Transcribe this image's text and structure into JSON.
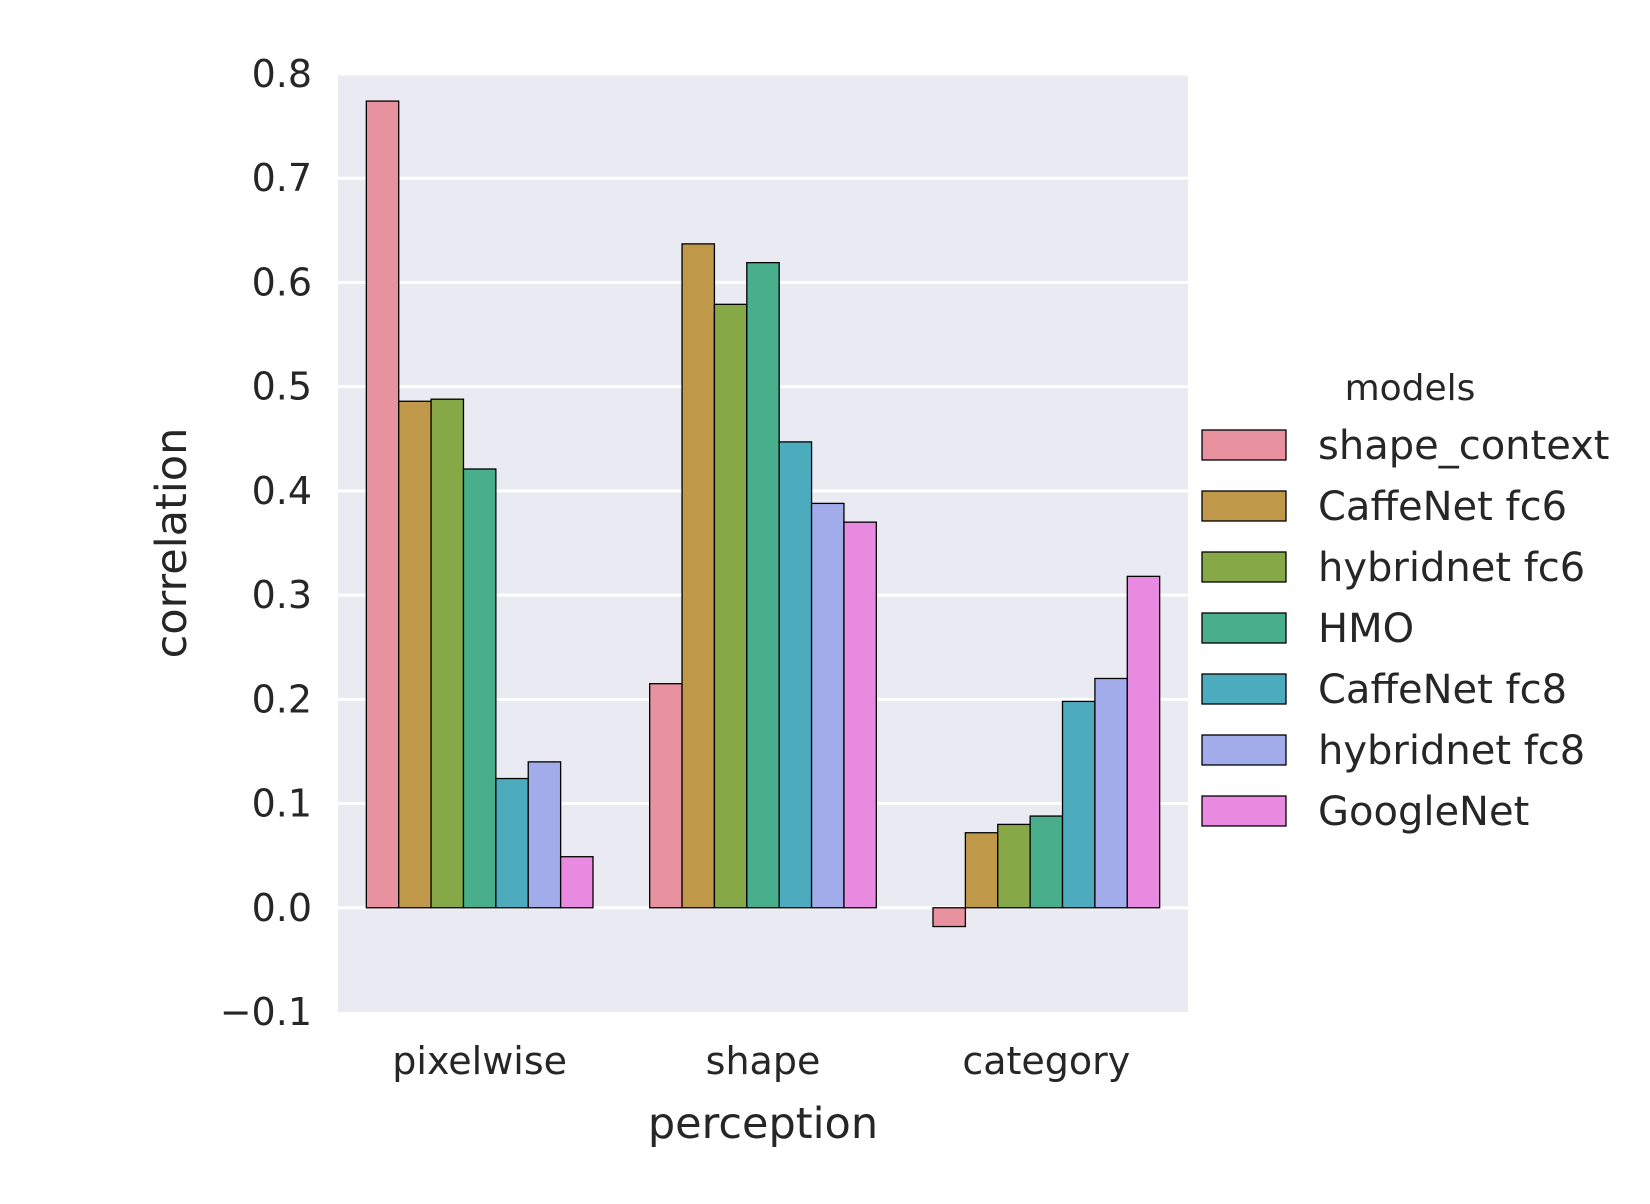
{
  "chart_data": {
    "type": "bar",
    "xlabel": "perception",
    "ylabel": "correlation",
    "categories": [
      "pixelwise",
      "shape",
      "category"
    ],
    "ylim": [
      -0.1,
      0.8
    ],
    "yticks": [
      -0.1,
      0.0,
      0.1,
      0.2,
      0.3,
      0.4,
      0.5,
      0.6,
      0.7,
      0.8
    ],
    "ytick_labels": [
      "−0.1",
      "0.0",
      "0.1",
      "0.2",
      "0.3",
      "0.4",
      "0.5",
      "0.6",
      "0.7",
      "0.8"
    ],
    "grid": true,
    "background": "#eaeaf2",
    "legend": {
      "title": "models",
      "placement": "right"
    },
    "series": [
      {
        "name": "shape_context",
        "color": "#e8929f",
        "values": [
          0.774,
          0.215,
          -0.018
        ]
      },
      {
        "name": "CaffeNet fc6",
        "color": "#c0984a",
        "values": [
          0.486,
          0.637,
          0.072
        ]
      },
      {
        "name": "hybridnet fc6",
        "color": "#86a846",
        "values": [
          0.488,
          0.579,
          0.08
        ]
      },
      {
        "name": "HMO",
        "color": "#49ae8b",
        "values": [
          0.421,
          0.619,
          0.088
        ]
      },
      {
        "name": "CaffeNet fc8",
        "color": "#4dabbe",
        "values": [
          0.124,
          0.447,
          0.198
        ]
      },
      {
        "name": "hybridnet fc8",
        "color": "#a2aceb",
        "values": [
          0.14,
          0.388,
          0.22
        ]
      },
      {
        "name": "GoogleNet",
        "color": "#e88be0",
        "values": [
          0.049,
          0.37,
          0.318
        ]
      }
    ]
  }
}
